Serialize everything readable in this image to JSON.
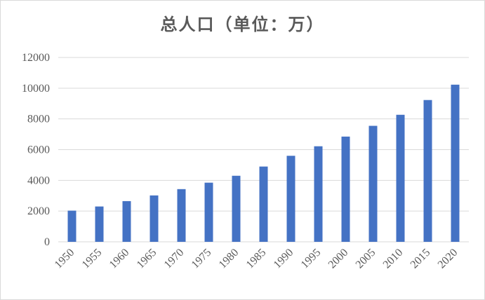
{
  "chart_data": {
    "type": "bar",
    "title": "总人口（单位：万）",
    "xlabel": "",
    "ylabel": "",
    "categories": [
      "1950",
      "1955",
      "1960",
      "1965",
      "1970",
      "1975",
      "1980",
      "1985",
      "1990",
      "1995",
      "2000",
      "2005",
      "2010",
      "2015",
      "2020"
    ],
    "values": [
      2030,
      2300,
      2650,
      3020,
      3430,
      3850,
      4300,
      4900,
      5600,
      6220,
      6850,
      7550,
      8270,
      9230,
      10230
    ],
    "ylim": [
      0,
      12000
    ],
    "yticks": [
      0,
      2000,
      4000,
      6000,
      8000,
      10000,
      12000
    ],
    "grid": true,
    "legend": "none",
    "bar_color": "#4472c4",
    "grid_color": "#d9d9d9"
  }
}
